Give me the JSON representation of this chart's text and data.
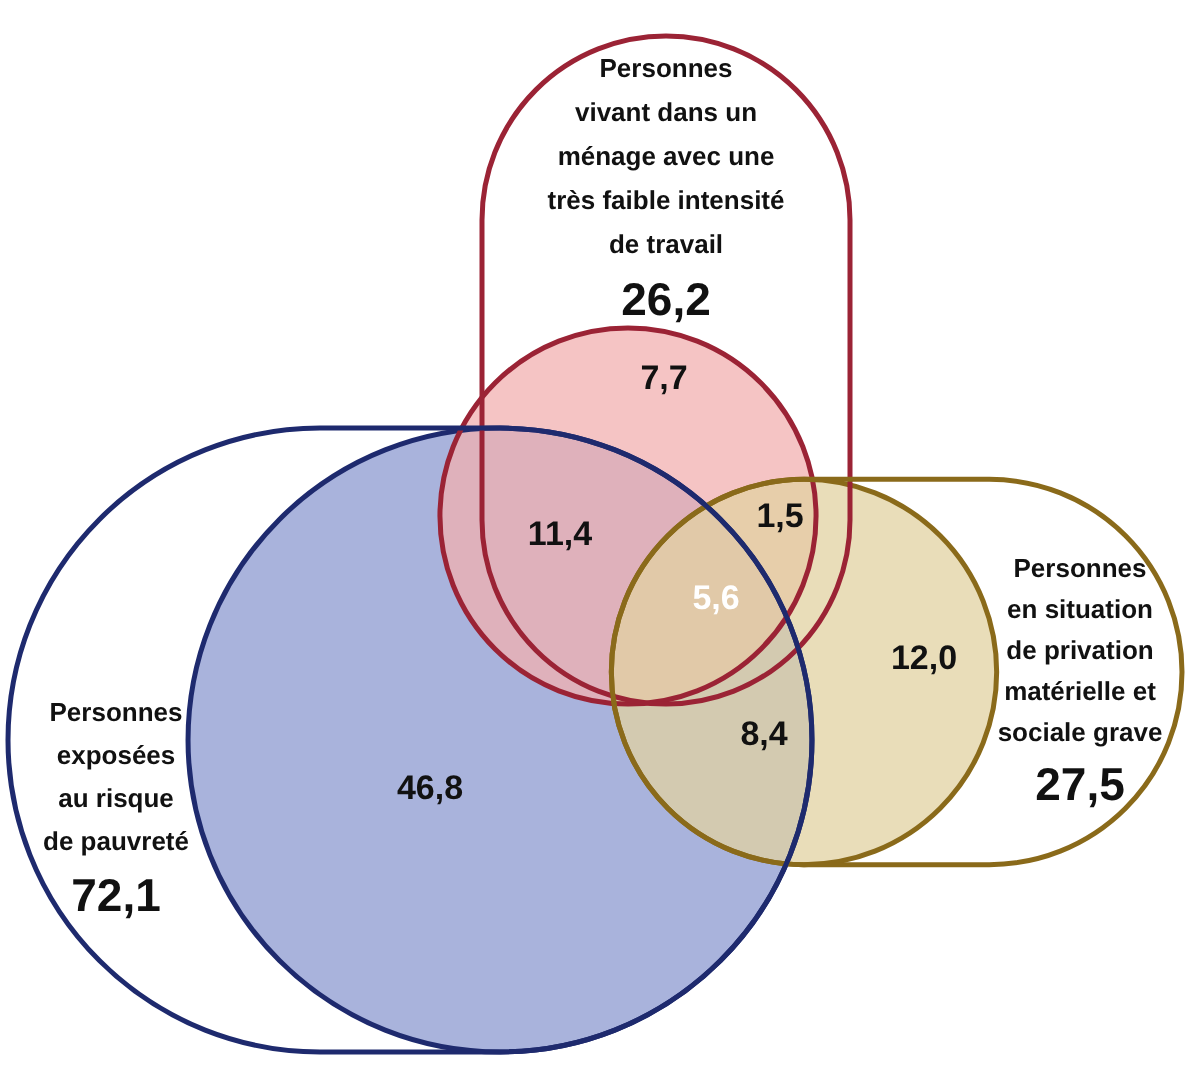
{
  "chart_data": {
    "type": "other",
    "categories": [
      "Personnes\nvivant dans un\nménage avec une\ntrès faible intensité\nde travail",
      "Personnes\nen situation\nde privation\nmatérielle et\nsociale grave",
      "Personnes\nexposées\nau risque\nde pauvreté"
    ],
    "values": [
      26.2,
      27.5,
      72.1
    ],
    "value_labels": [
      "26,2",
      "27,5",
      "72,1"
    ],
    "colors": [
      "#f2b0b0",
      "#e2d2a2",
      "#a9b3dc"
    ],
    "annotations": [
      "7,7",
      "11,4",
      "1,5",
      "5,6",
      "46,8",
      "8,4",
      "12,0"
    ]
  }
}
